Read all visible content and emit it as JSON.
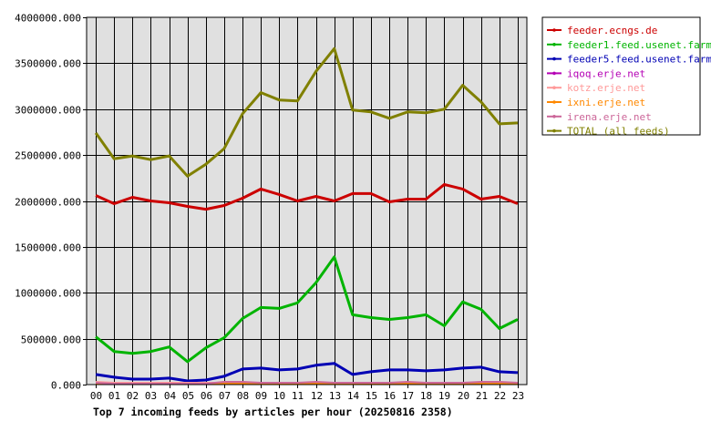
{
  "chart_data": {
    "type": "line",
    "title": "Top 7 incoming feeds by articles per hour (20250816 2358)",
    "xlabel": "",
    "ylabel": "",
    "ylim": [
      0,
      4000000
    ],
    "yticks": [
      "0.000",
      "500000.000",
      "1000000.000",
      "1500000.000",
      "2000000.000",
      "2500000.000",
      "3000000.000",
      "3500000.000",
      "4000000.000"
    ],
    "categories": [
      "00",
      "01",
      "02",
      "03",
      "04",
      "05",
      "06",
      "07",
      "08",
      "09",
      "10",
      "11",
      "12",
      "13",
      "14",
      "15",
      "16",
      "17",
      "18",
      "19",
      "20",
      "21",
      "22",
      "23"
    ],
    "grid": true,
    "legend_position": "right",
    "background": "#e0e0e0",
    "series": [
      {
        "name": "feeder.ecngs.de",
        "color": "#cc0000",
        "values": [
          2060000,
          1970000,
          2040000,
          2000000,
          1980000,
          1940000,
          1910000,
          1950000,
          2030000,
          2130000,
          2070000,
          2000000,
          2050000,
          2000000,
          2080000,
          2080000,
          1990000,
          2020000,
          2020000,
          2180000,
          2130000,
          2020000,
          2050000,
          1970000
        ]
      },
      {
        "name": "feeder1.feed.usenet.farm",
        "color": "#00b400",
        "values": [
          520000,
          360000,
          340000,
          360000,
          410000,
          250000,
          400000,
          510000,
          720000,
          840000,
          830000,
          890000,
          1110000,
          1390000,
          760000,
          730000,
          710000,
          730000,
          760000,
          640000,
          900000,
          820000,
          610000,
          710000
        ]
      },
      {
        "name": "feeder5.feed.usenet.farm",
        "color": "#0000b4",
        "values": [
          110000,
          80000,
          60000,
          60000,
          70000,
          40000,
          50000,
          90000,
          170000,
          180000,
          160000,
          170000,
          210000,
          230000,
          110000,
          140000,
          160000,
          160000,
          150000,
          160000,
          180000,
          190000,
          140000,
          130000
        ]
      },
      {
        "name": "iqoq.erje.net",
        "color": "#b400b4",
        "values": [
          20000,
          10000,
          10000,
          10000,
          10000,
          10000,
          10000,
          10000,
          10000,
          10000,
          10000,
          10000,
          10000,
          10000,
          10000,
          10000,
          10000,
          10000,
          10000,
          10000,
          10000,
          10000,
          10000,
          10000
        ]
      },
      {
        "name": "kotz.erje.net",
        "color": "#ff9999",
        "values": [
          30000,
          20000,
          20000,
          20000,
          20000,
          20000,
          20000,
          20000,
          20000,
          20000,
          20000,
          20000,
          20000,
          20000,
          20000,
          20000,
          20000,
          20000,
          20000,
          20000,
          20000,
          20000,
          20000,
          20000
        ]
      },
      {
        "name": "ixni.erje.net",
        "color": "#ff8800",
        "values": [
          10000,
          10000,
          10000,
          10000,
          10000,
          10000,
          10000,
          10000,
          10000,
          10000,
          10000,
          10000,
          10000,
          10000,
          10000,
          10000,
          10000,
          10000,
          10000,
          10000,
          10000,
          10000,
          10000,
          10000
        ]
      },
      {
        "name": "irena.erje.net",
        "color": "#cc6699",
        "values": [
          20000,
          10000,
          10000,
          10000,
          10000,
          10000,
          10000,
          30000,
          30000,
          20000,
          20000,
          20000,
          30000,
          20000,
          20000,
          20000,
          20000,
          30000,
          20000,
          20000,
          20000,
          30000,
          30000,
          20000
        ]
      },
      {
        "name": "TOTAL (all feeds)",
        "color": "#808000",
        "values": [
          2740000,
          2460000,
          2490000,
          2450000,
          2490000,
          2270000,
          2400000,
          2570000,
          2950000,
          3180000,
          3100000,
          3090000,
          3410000,
          3660000,
          2990000,
          2970000,
          2900000,
          2970000,
          2960000,
          3000000,
          3260000,
          3080000,
          2840000,
          2850000
        ]
      }
    ]
  }
}
